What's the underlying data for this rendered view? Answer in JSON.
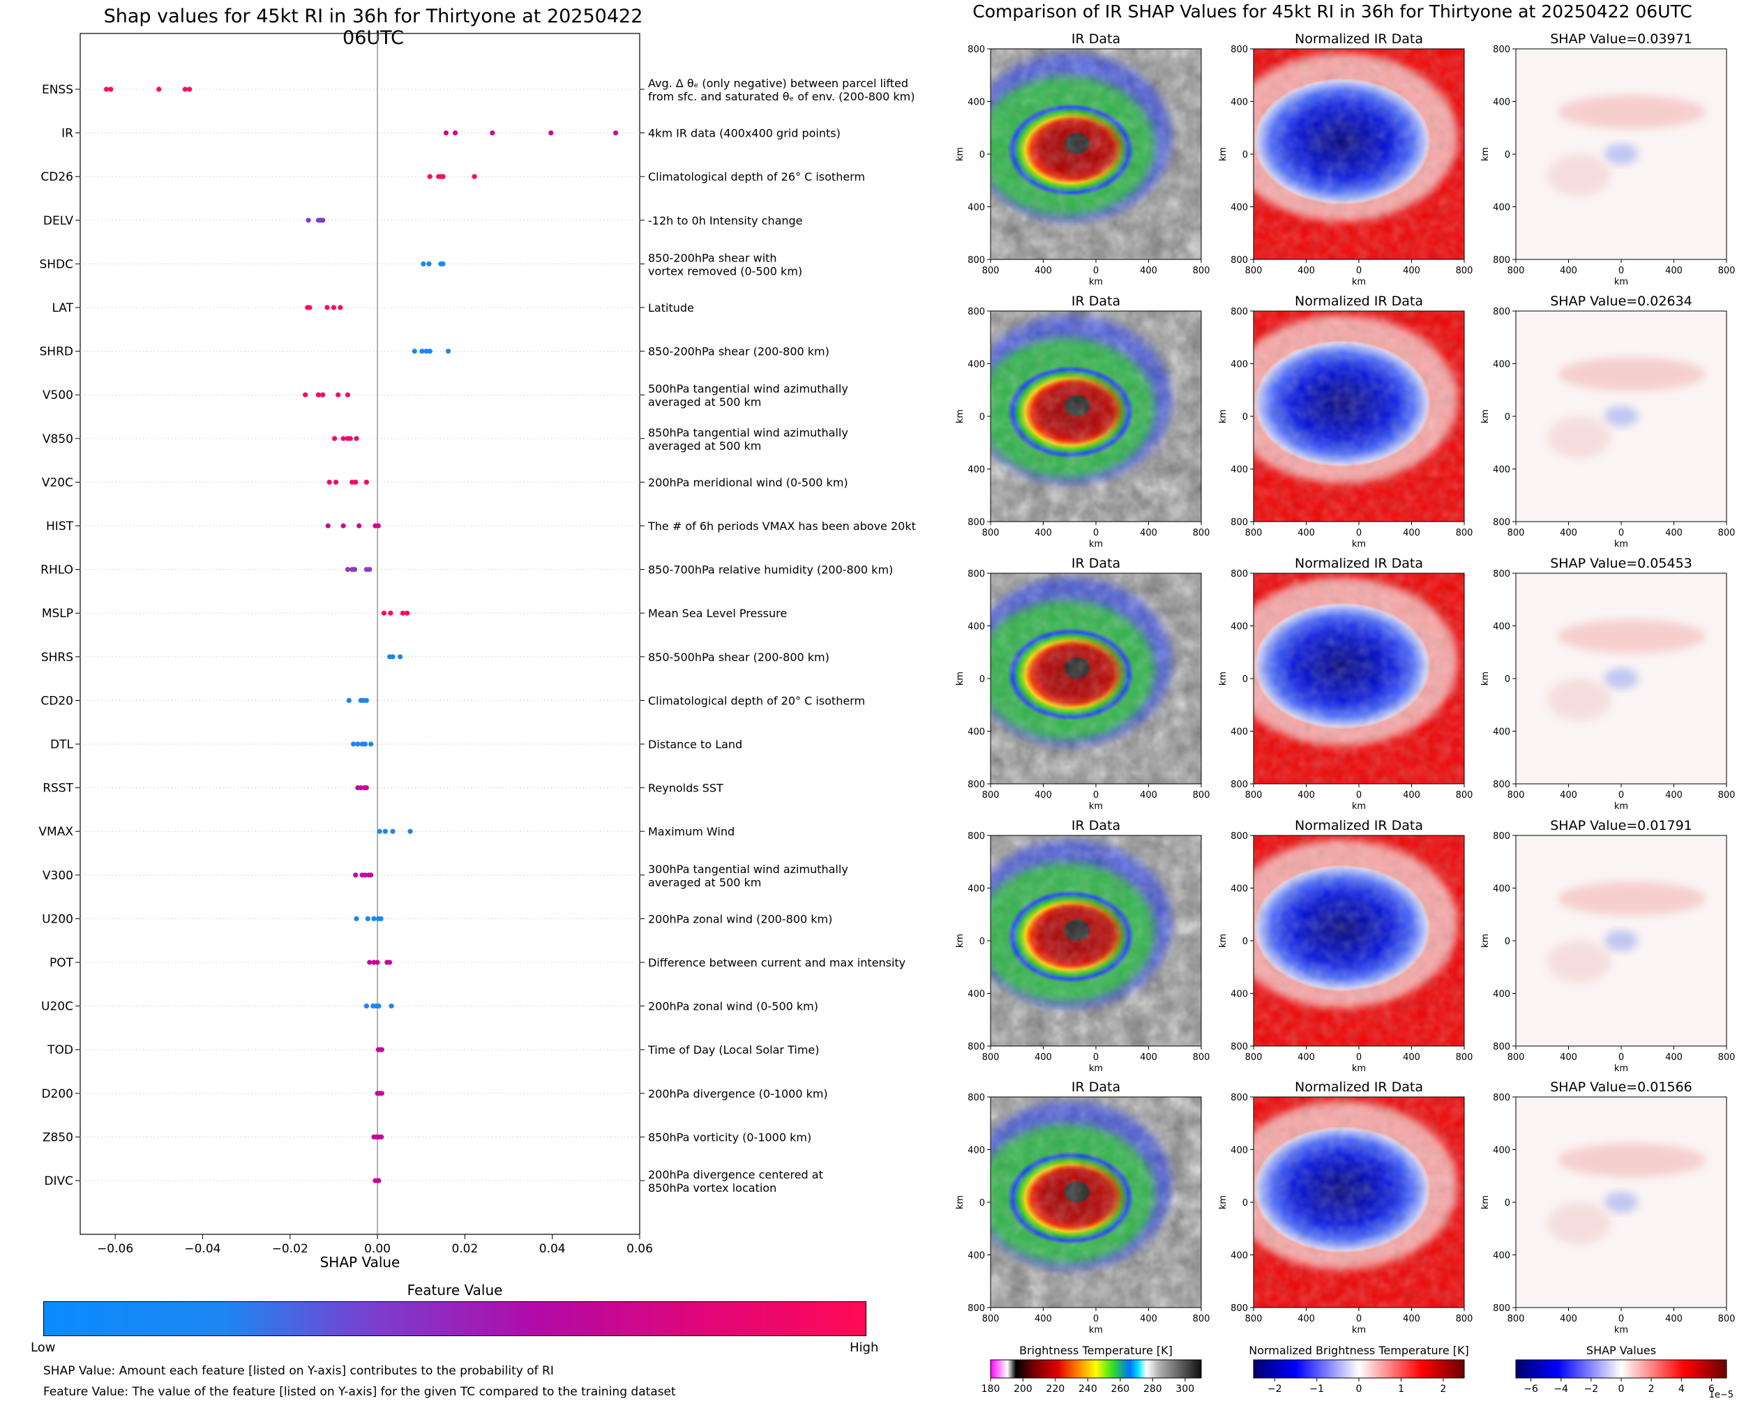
{
  "shap": {
    "title": "Shap values for 45kt RI in 36h for Thirtyone at 20250422 06UTC",
    "xlabel": "SHAP Value",
    "colorbar_title": "Feature Value",
    "colorbar_low": "Low",
    "colorbar_high": "High",
    "note_shap": "SHAP Value: Amount each feature [listed on Y-axis] contributes to the probability of RI",
    "note_feature": "Feature Value: The value of the feature [listed on Y-axis] for the given TC compared to the training dataset"
  },
  "ir": {
    "title": "Comparison of IR SHAP Values for 45kt RI in 36h for Thirtyone at 20250422 06UTC",
    "col_titles": [
      "IR Data",
      "Normalized IR Data"
    ],
    "shap_titles": [
      "SHAP Value=0.03971",
      "SHAP Value=0.02634",
      "SHAP Value=0.05453",
      "SHAP Value=0.01791",
      "SHAP Value=0.01566"
    ],
    "axis_label": "km",
    "tick_labels": [
      "800",
      "400",
      "0",
      "400",
      "800"
    ],
    "cbar1_label": "Brightness Temperature [K]",
    "cbar1_ticks": [
      "180",
      "200",
      "220",
      "240",
      "260",
      "280",
      "300"
    ],
    "cbar2_label": "Normalized Brightness Temperature [K]",
    "cbar2_ticks": [
      "−2",
      "−1",
      "0",
      "1",
      "2"
    ],
    "cbar3_label": "SHAP Values",
    "cbar3_ticks": [
      "−6",
      "−4",
      "−2",
      "0",
      "2",
      "4",
      "6"
    ],
    "cbar3_exponent": "1e−5"
  },
  "chart_data": [
    {
      "type": "scatter",
      "title": "Shap values for 45kt RI in 36h for Thirtyone at 20250422 06UTC",
      "xlabel": "SHAP Value",
      "xlim": [
        -0.068,
        0.06
      ],
      "xticks": [
        -0.06,
        -0.04,
        -0.02,
        0.0,
        0.02,
        0.04,
        0.06
      ],
      "xtick_labels": [
        "−0.06",
        "−0.04",
        "−0.02",
        "0.00",
        "0.02",
        "0.04",
        "0.06"
      ],
      "features": [
        {
          "name": "ENSS",
          "desc": [
            "Avg. Δ θₑ (only negative) between parcel lifted",
            "from sfc. and saturated θₑ of env. (200-800 km)"
          ],
          "color": "#ff0a5e",
          "shap": [
            -0.062,
            -0.061,
            -0.05,
            -0.044,
            -0.043
          ]
        },
        {
          "name": "IR",
          "desc": [
            "4km IR data (400x400 grid points)"
          ],
          "color": "#d0068f",
          "shap": [
            0.0157,
            0.0178,
            0.0263,
            0.0397,
            0.0545
          ]
        },
        {
          "name": "CD26",
          "desc": [
            "Climatological depth of 26° C isotherm"
          ],
          "color": "#ff0a5e",
          "shap": [
            0.012,
            0.014,
            0.0145,
            0.015,
            0.0222
          ]
        },
        {
          "name": "DELV",
          "desc": [
            "-12h to 0h Intensity change"
          ],
          "color": "#7a3fcf",
          "shap": [
            -0.0158,
            -0.0135,
            -0.013,
            -0.0125
          ]
        },
        {
          "name": "SHDC",
          "desc": [
            "850-200hPa shear with",
            "vortex removed (0-500 km)"
          ],
          "color": "#1c86f0",
          "shap": [
            0.0105,
            0.0118,
            0.0145,
            0.015
          ]
        },
        {
          "name": "LAT",
          "desc": [
            "Latitude"
          ],
          "color": "#ff0a5e",
          "shap": [
            -0.016,
            -0.0155,
            -0.0115,
            -0.01,
            -0.0085
          ]
        },
        {
          "name": "SHRD",
          "desc": [
            "850-200hPa shear (200-800 km)"
          ],
          "color": "#1c86f0",
          "shap": [
            0.0085,
            0.0102,
            0.0112,
            0.012,
            0.0162
          ]
        },
        {
          "name": "V500",
          "desc": [
            "500hPa tangential wind azimuthally",
            "averaged at 500 km"
          ],
          "color": "#f20a6a",
          "shap": [
            -0.0165,
            -0.0135,
            -0.0125,
            -0.009,
            -0.0068
          ]
        },
        {
          "name": "V850",
          "desc": [
            "850hPa tangential wind azimuthally",
            "averaged at 500 km"
          ],
          "color": "#f20a6a",
          "shap": [
            -0.0098,
            -0.0078,
            -0.0068,
            -0.0062,
            -0.0048
          ]
        },
        {
          "name": "V20C",
          "desc": [
            "200hPa meridional wind (0-500 km)"
          ],
          "color": "#f20a6a",
          "shap": [
            -0.011,
            -0.0095,
            -0.0058,
            -0.005,
            -0.0025
          ]
        },
        {
          "name": "HIST",
          "desc": [
            "The # of 6h periods VMAX has been above 20kt"
          ],
          "color": "#d0068f",
          "shap": [
            -0.0113,
            -0.0078,
            -0.0042,
            -0.0005,
            0.0002
          ]
        },
        {
          "name": "RHLO",
          "desc": [
            "850-700hPa relative humidity (200-800 km)"
          ],
          "color": "#8c3cc4",
          "shap": [
            -0.0068,
            -0.0058,
            -0.0052,
            -0.0025,
            -0.0018
          ]
        },
        {
          "name": "MSLP",
          "desc": [
            "Mean Sea Level Pressure"
          ],
          "color": "#ff0a5e",
          "shap": [
            0.0015,
            0.003,
            0.0058,
            0.0068
          ]
        },
        {
          "name": "SHRS",
          "desc": [
            "850-500hPa shear (200-800 km)"
          ],
          "color": "#1c86f0",
          "shap": [
            0.0028,
            0.0035,
            0.0052
          ]
        },
        {
          "name": "CD20",
          "desc": [
            "Climatological depth of 20° C isotherm"
          ],
          "color": "#1c86f0",
          "shap": [
            -0.0065,
            -0.0038,
            -0.0032,
            -0.0025
          ]
        },
        {
          "name": "DTL",
          "desc": [
            "Distance to Land"
          ],
          "color": "#1c86f0",
          "shap": [
            -0.0055,
            -0.0045,
            -0.0035,
            -0.0028,
            -0.0015
          ]
        },
        {
          "name": "RSST",
          "desc": [
            "Reynolds SST"
          ],
          "color": "#c4089d",
          "shap": [
            -0.0045,
            -0.0038,
            -0.003,
            -0.0025
          ]
        },
        {
          "name": "VMAX",
          "desc": [
            "Maximum Wind"
          ],
          "color": "#1c86f0",
          "shap": [
            0.0005,
            0.0018,
            0.0035,
            0.0075
          ]
        },
        {
          "name": "V300",
          "desc": [
            "300hPa tangential wind azimuthally",
            "averaged at 500 km"
          ],
          "color": "#c4089d",
          "shap": [
            -0.005,
            -0.0035,
            -0.0028,
            -0.002,
            -0.0015
          ]
        },
        {
          "name": "U200",
          "desc": [
            "200hPa zonal wind (200-800 km)"
          ],
          "color": "#1c86f0",
          "shap": [
            -0.0048,
            -0.0022,
            -0.0008,
            0.0002,
            0.0008
          ]
        },
        {
          "name": "POT",
          "desc": [
            "Difference between current and max intensity"
          ],
          "color": "#c4089d",
          "shap": [
            -0.0018,
            -0.0008,
            0.0,
            0.0022,
            0.0028
          ]
        },
        {
          "name": "U20C",
          "desc": [
            "200hPa zonal wind (0-500 km)"
          ],
          "color": "#1c86f0",
          "shap": [
            -0.0025,
            -0.001,
            -0.0003,
            0.0003,
            0.0032
          ]
        },
        {
          "name": "TOD",
          "desc": [
            "Time of Day (Local Solar Time)"
          ],
          "color": "#c4089d",
          "shap": [
            0.0002,
            0.0006,
            0.001
          ]
        },
        {
          "name": "D200",
          "desc": [
            "200hPa divergence (0-1000 km)"
          ],
          "color": "#c4089d",
          "shap": [
            0.0,
            0.0005,
            0.001
          ]
        },
        {
          "name": "Z850",
          "desc": [
            "850hPa vorticity (0-1000 km)"
          ],
          "color": "#c4089d",
          "shap": [
            -0.0008,
            -0.0002,
            0.0003,
            0.0009
          ]
        },
        {
          "name": "DIVC",
          "desc": [
            "200hPa divergence centered at",
            "850hPa vortex location"
          ],
          "color": "#c4089d",
          "shap": [
            -0.0005,
            0.0,
            0.0003
          ]
        }
      ]
    },
    {
      "type": "heatmap",
      "title": "Comparison of IR SHAP Values for 45kt RI in 36h for Thirtyone at 20250422 06UTC",
      "panels_per_row": [
        "IR Data",
        "Normalized IR Data",
        "SHAP Value"
      ],
      "shap_values": [
        0.03971,
        0.02634,
        0.05453,
        0.01791,
        0.01566
      ],
      "xlabel": "km",
      "ylabel": "km",
      "colorbars": [
        {
          "label": "Brightness Temperature [K]",
          "range": [
            180,
            310
          ]
        },
        {
          "label": "Normalized Brightness Temperature [K]",
          "range": [
            -2.5,
            2.5
          ]
        },
        {
          "label": "SHAP Values",
          "range": [
            -7e-05,
            7e-05
          ],
          "exponent": "1e-5"
        }
      ]
    }
  ]
}
